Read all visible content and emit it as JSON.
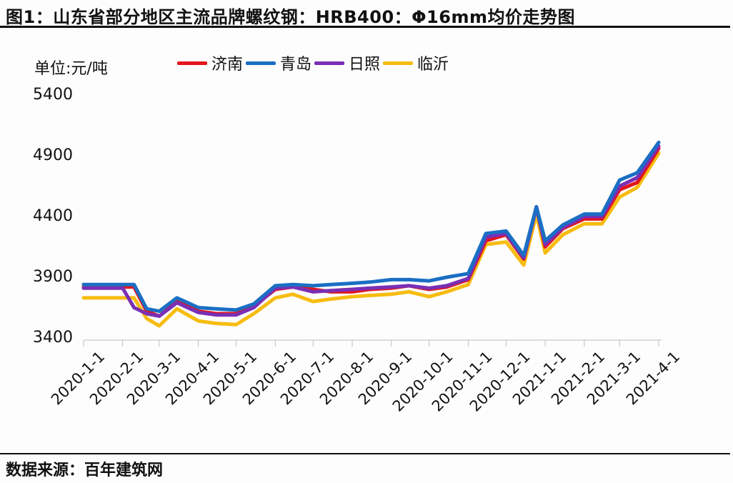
{
  "title": "图1：山东省部分地区主流品牌螺纹钢：HRB400：Φ16mm均价走势图",
  "unit_label": "单位:元/吨",
  "source": "数据来源：百年建筑网",
  "legend": [
    {
      "name": "济南",
      "color": "#e3151b"
    },
    {
      "name": "青岛",
      "color": "#1a6fc4"
    },
    {
      "name": "日照",
      "color": "#7a2fb5"
    },
    {
      "name": "临沂",
      "color": "#f7bc10"
    }
  ],
  "y_ticks": [
    "5400",
    "4900",
    "4400",
    "3900",
    "3400"
  ],
  "x_ticks": [
    "2020-1-1",
    "2020-2-1",
    "2020-3-1",
    "2020-4-1",
    "2020-5-1",
    "2020-6-1",
    "2020-7-1",
    "2020-8-1",
    "2020-9-1",
    "2020-10-1",
    "2020-11-1",
    "2020-12-1",
    "2021-1-1",
    "2021-2-1",
    "2021-3-1",
    "2021-4-1"
  ],
  "chart_data": {
    "type": "line",
    "title": "图1：山东省部分地区主流品牌螺纹钢：HRB400：Φ16mm均价走势图",
    "xlabel": "",
    "ylabel": "单位:元/吨",
    "ylim": [
      3400,
      5400
    ],
    "grid": false,
    "legend_position": "top",
    "x": [
      "2020-1-1",
      "2020-1-15",
      "2020-2-1",
      "2020-2-10",
      "2020-2-20",
      "2020-3-1",
      "2020-3-15",
      "2020-4-1",
      "2020-4-15",
      "2020-5-1",
      "2020-5-15",
      "2020-6-1",
      "2020-6-15",
      "2020-7-1",
      "2020-7-15",
      "2020-8-1",
      "2020-8-15",
      "2020-9-1",
      "2020-9-15",
      "2020-10-1",
      "2020-10-15",
      "2020-11-1",
      "2020-11-15",
      "2020-12-1",
      "2020-12-15",
      "2020-12-25",
      "2021-1-1",
      "2021-1-15",
      "2021-2-1",
      "2021-2-15",
      "2021-3-1",
      "2021-3-15",
      "2021-4-1"
    ],
    "series": [
      {
        "name": "济南",
        "color": "#e3151b",
        "values": [
          3820,
          3820,
          3820,
          3820,
          3620,
          3580,
          3700,
          3620,
          3600,
          3600,
          3660,
          3800,
          3820,
          3800,
          3780,
          3780,
          3800,
          3810,
          3830,
          3800,
          3820,
          3880,
          4200,
          4250,
          4050,
          4480,
          4150,
          4300,
          4380,
          4380,
          4620,
          4680,
          4960
        ]
      },
      {
        "name": "青岛",
        "color": "#1a6fc4",
        "values": [
          3840,
          3840,
          3840,
          3840,
          3640,
          3620,
          3730,
          3650,
          3640,
          3630,
          3680,
          3830,
          3840,
          3830,
          3840,
          3850,
          3860,
          3880,
          3880,
          3870,
          3900,
          3930,
          4260,
          4280,
          4080,
          4480,
          4200,
          4330,
          4420,
          4420,
          4700,
          4760,
          5010
        ]
      },
      {
        "name": "日照",
        "color": "#7a2fb5",
        "values": [
          3810,
          3810,
          3810,
          3650,
          3600,
          3580,
          3690,
          3610,
          3590,
          3590,
          3650,
          3810,
          3820,
          3780,
          3790,
          3800,
          3810,
          3820,
          3830,
          3810,
          3830,
          3890,
          4230,
          4260,
          4060,
          4470,
          4170,
          4310,
          4400,
          4400,
          4650,
          4720,
          4980
        ]
      },
      {
        "name": "临沂",
        "color": "#f7bc10",
        "values": [
          3730,
          3730,
          3730,
          3730,
          3560,
          3500,
          3640,
          3540,
          3520,
          3510,
          3600,
          3730,
          3760,
          3700,
          3720,
          3740,
          3750,
          3760,
          3780,
          3740,
          3780,
          3840,
          4170,
          4190,
          4000,
          4420,
          4100,
          4250,
          4340,
          4340,
          4560,
          4640,
          4920
        ]
      }
    ]
  }
}
